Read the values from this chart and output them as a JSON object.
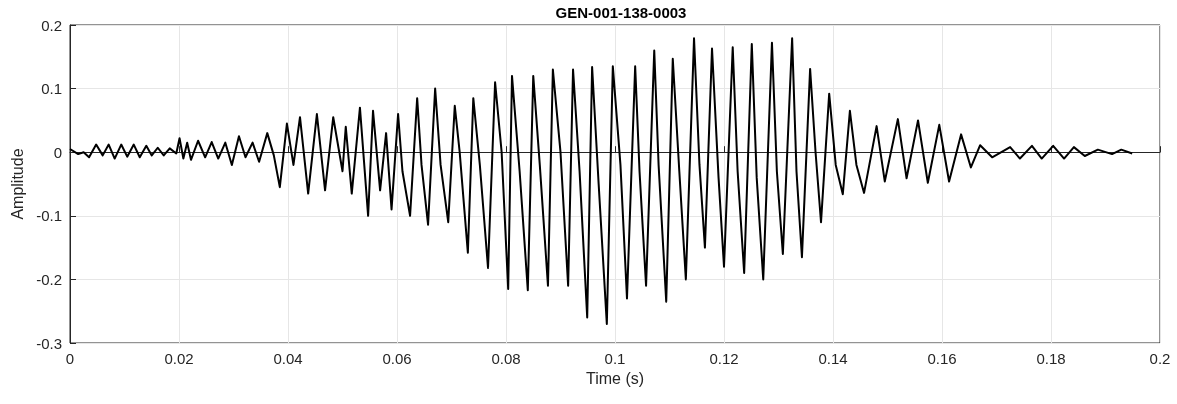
{
  "chart_data": {
    "type": "line",
    "title": "GEN-001-138-0003",
    "xlabel": "Time (s)",
    "ylabel": "Amplitude",
    "xlim": [
      0,
      0.2
    ],
    "xticks": [
      0,
      0.02,
      0.04,
      0.06,
      0.08,
      0.1,
      0.12,
      0.14,
      0.16,
      0.18,
      0.2
    ],
    "ylim": [
      -0.3,
      0.2
    ],
    "yticks": [
      -0.3,
      -0.2,
      -0.1,
      0,
      0.1,
      0.2
    ],
    "grid": true,
    "marker": "none",
    "line_style": "solid",
    "series": [
      {
        "color": "#000000",
        "x": [
          0,
          0.0015,
          0.0025,
          0.0035,
          0.0048,
          0.006,
          0.0071,
          0.0082,
          0.0094,
          0.0105,
          0.0117,
          0.0128,
          0.014,
          0.015,
          0.0161,
          0.0172,
          0.0183,
          0.0195,
          0.0201,
          0.0208,
          0.0215,
          0.0222,
          0.0235,
          0.0248,
          0.026,
          0.0272,
          0.0285,
          0.0297,
          0.031,
          0.0322,
          0.0335,
          0.0347,
          0.0362,
          0.0374,
          0.0385,
          0.0398,
          0.041,
          0.0422,
          0.0437,
          0.0453,
          0.0468,
          0.0483,
          0.05,
          0.0506,
          0.0517,
          0.0532,
          0.0547,
          0.0556,
          0.0569,
          0.058,
          0.059,
          0.0602,
          0.061,
          0.0624,
          0.0637,
          0.0645,
          0.0657,
          0.067,
          0.068,
          0.0694,
          0.0706,
          0.0715,
          0.073,
          0.074,
          0.0752,
          0.0767,
          0.078,
          0.0792,
          0.0804,
          0.0811,
          0.0825,
          0.084,
          0.085,
          0.0862,
          0.0877,
          0.0886,
          0.09,
          0.0914,
          0.0923,
          0.0935,
          0.0949,
          0.0958,
          0.097,
          0.0985,
          0.0996,
          0.101,
          0.1022,
          0.1037,
          0.1045,
          0.1057,
          0.1072,
          0.108,
          0.1094,
          0.1106,
          0.1118,
          0.113,
          0.1145,
          0.1155,
          0.1165,
          0.1178,
          0.119,
          0.12,
          0.1216,
          0.1225,
          0.1237,
          0.1251,
          0.126,
          0.1272,
          0.1288,
          0.1297,
          0.1308,
          0.1325,
          0.1333,
          0.1343,
          0.1358,
          0.1368,
          0.1378,
          0.1393,
          0.1405,
          0.1418,
          0.1431,
          0.1443,
          0.1457,
          0.148,
          0.1495,
          0.1519,
          0.1535,
          0.1556,
          0.1574,
          0.1595,
          0.1613,
          0.1635,
          0.1653,
          0.167,
          0.1692,
          0.1725,
          0.1743,
          0.1765,
          0.1783,
          0.1804,
          0.1824,
          0.1842,
          0.1862,
          0.1886,
          0.1912,
          0.1929,
          0.1949
        ],
        "values": [
          0.005,
          -0.003,
          0,
          -0.008,
          0.012,
          -0.005,
          0.012,
          -0.01,
          0.012,
          -0.007,
          0.012,
          -0.008,
          0.01,
          -0.005,
          0.007,
          -0.005,
          0.006,
          -0.002,
          0.022,
          -0.01,
          0.015,
          -0.012,
          0.018,
          -0.008,
          0.016,
          -0.01,
          0.015,
          -0.02,
          0.025,
          -0.008,
          0.015,
          -0.015,
          0.03,
          -0.005,
          -0.055,
          0.045,
          -0.02,
          0.055,
          -0.065,
          0.06,
          -0.06,
          0.055,
          -0.03,
          0.04,
          -0.065,
          0.07,
          -0.1,
          0.065,
          -0.06,
          0.03,
          -0.09,
          0.06,
          -0.03,
          -0.1,
          0.085,
          -0.02,
          -0.114,
          0.1,
          -0.02,
          -0.11,
          0.073,
          0,
          -0.158,
          0.085,
          -0.02,
          -0.182,
          0.11,
          0,
          -0.215,
          0.12,
          -0.03,
          -0.217,
          0.12,
          -0.02,
          -0.21,
          0.13,
          0,
          -0.21,
          0.13,
          -0.03,
          -0.26,
          0.134,
          -0.05,
          -0.27,
          0.135,
          -0.02,
          -0.23,
          0.135,
          -0.03,
          -0.21,
          0.16,
          -0.02,
          -0.235,
          0.147,
          -0.03,
          -0.2,
          0.179,
          -0.02,
          -0.15,
          0.163,
          -0.04,
          -0.18,
          0.165,
          -0.03,
          -0.19,
          0.17,
          -0.04,
          -0.2,
          0.172,
          -0.03,
          -0.16,
          0.179,
          -0.03,
          -0.165,
          0.131,
          0,
          -0.11,
          0.092,
          -0.02,
          -0.066,
          0.065,
          -0.02,
          -0.064,
          0.041,
          -0.046,
          0.052,
          -0.041,
          0.05,
          -0.048,
          0.043,
          -0.046,
          0.028,
          -0.024,
          0.011,
          -0.008,
          0.008,
          -0.01,
          0.01,
          -0.01,
          0.01,
          -0.01,
          0.008,
          -0.006,
          0.004,
          -0.003,
          0.004,
          -0.002
        ]
      }
    ]
  }
}
